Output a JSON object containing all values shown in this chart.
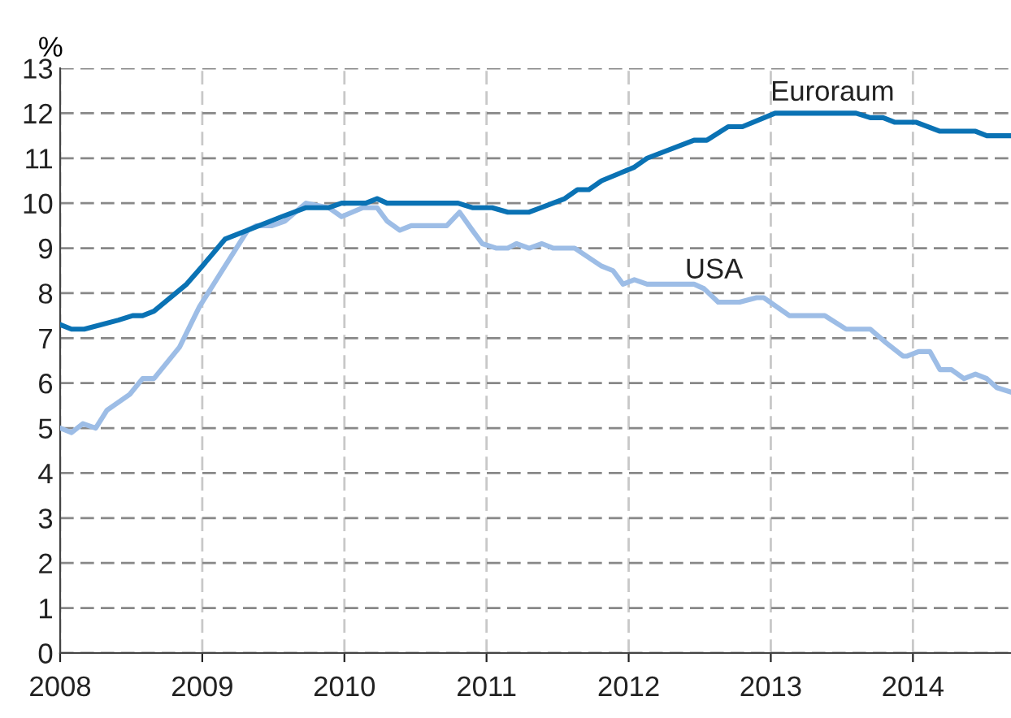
{
  "chart_data": {
    "type": "line",
    "ylabel": "%",
    "xlim": [
      2008,
      2014.69
    ],
    "xticks": [
      2008,
      2009,
      2010,
      2011,
      2012,
      2013,
      2014
    ],
    "ylim": [
      0,
      13
    ],
    "yticks": [
      0,
      1,
      2,
      3,
      4,
      5,
      6,
      7,
      8,
      9,
      10,
      11,
      12,
      13
    ],
    "grid": true,
    "legend": false,
    "marker": "none",
    "line_style": "solid",
    "series": [
      {
        "name": "Euroraum",
        "color": "#0a72b4",
        "x": [
          2008.0,
          2008.08,
          2008.17,
          2008.41,
          2008.51,
          2008.58,
          2008.66,
          2008.89,
          2009.0,
          2009.16,
          2009.32,
          2009.56,
          2009.73,
          2009.89,
          2009.98,
          2010.15,
          2010.23,
          2010.3,
          2010.8,
          2010.9,
          2011.04,
          2011.15,
          2011.3,
          2011.55,
          2011.64,
          2011.72,
          2011.81,
          2012.04,
          2012.13,
          2012.46,
          2012.55,
          2012.7,
          2012.8,
          2013.03,
          2013.6,
          2013.7,
          2013.79,
          2013.87,
          2014.02,
          2014.19,
          2014.44,
          2014.52,
          2014.69
        ],
        "values": [
          7.3,
          7.2,
          7.2,
          7.4,
          7.5,
          7.5,
          7.6,
          8.2,
          8.6,
          9.2,
          9.4,
          9.7,
          9.9,
          9.9,
          10.0,
          10.0,
          10.1,
          10.0,
          10.0,
          9.9,
          9.9,
          9.8,
          9.8,
          10.1,
          10.3,
          10.3,
          10.5,
          10.8,
          11.0,
          11.4,
          11.4,
          11.7,
          11.7,
          12.0,
          12.0,
          11.9,
          11.9,
          11.8,
          11.8,
          11.6,
          11.6,
          11.5,
          11.5
        ]
      },
      {
        "name": "USA",
        "color": "#9dbde6",
        "x": [
          2008.0,
          2008.08,
          2008.16,
          2008.25,
          2008.33,
          2008.49,
          2008.58,
          2008.66,
          2008.84,
          2008.98,
          2009.14,
          2009.32,
          2009.38,
          2009.49,
          2009.58,
          2009.73,
          2009.89,
          2009.98,
          2010.13,
          2010.23,
          2010.3,
          2010.39,
          2010.47,
          2010.72,
          2010.81,
          2010.9,
          2010.97,
          2011.07,
          2011.15,
          2011.21,
          2011.3,
          2011.39,
          2011.47,
          2011.62,
          2011.81,
          2011.89,
          2011.96,
          2012.04,
          2012.13,
          2012.46,
          2012.53,
          2012.63,
          2012.78,
          2012.9,
          2012.95,
          2013.13,
          2013.38,
          2013.53,
          2013.7,
          2013.81,
          2013.93,
          2013.96,
          2014.04,
          2014.12,
          2014.19,
          2014.27,
          2014.36,
          2014.44,
          2014.52,
          2014.59,
          2014.69
        ],
        "values": [
          5.0,
          4.9,
          5.1,
          5.0,
          5.4,
          5.75,
          6.1,
          6.1,
          6.8,
          7.7,
          8.5,
          9.4,
          9.5,
          9.5,
          9.6,
          10.0,
          9.9,
          9.7,
          9.9,
          9.9,
          9.6,
          9.4,
          9.5,
          9.5,
          9.8,
          9.4,
          9.1,
          9.0,
          9.0,
          9.1,
          9.0,
          9.1,
          9.0,
          9.0,
          8.6,
          8.5,
          8.2,
          8.3,
          8.2,
          8.2,
          8.1,
          7.8,
          7.8,
          7.9,
          7.9,
          7.5,
          7.5,
          7.2,
          7.2,
          6.9,
          6.6,
          6.6,
          6.7,
          6.7,
          6.3,
          6.3,
          6.1,
          6.2,
          6.1,
          5.9,
          5.8
        ]
      }
    ]
  }
}
